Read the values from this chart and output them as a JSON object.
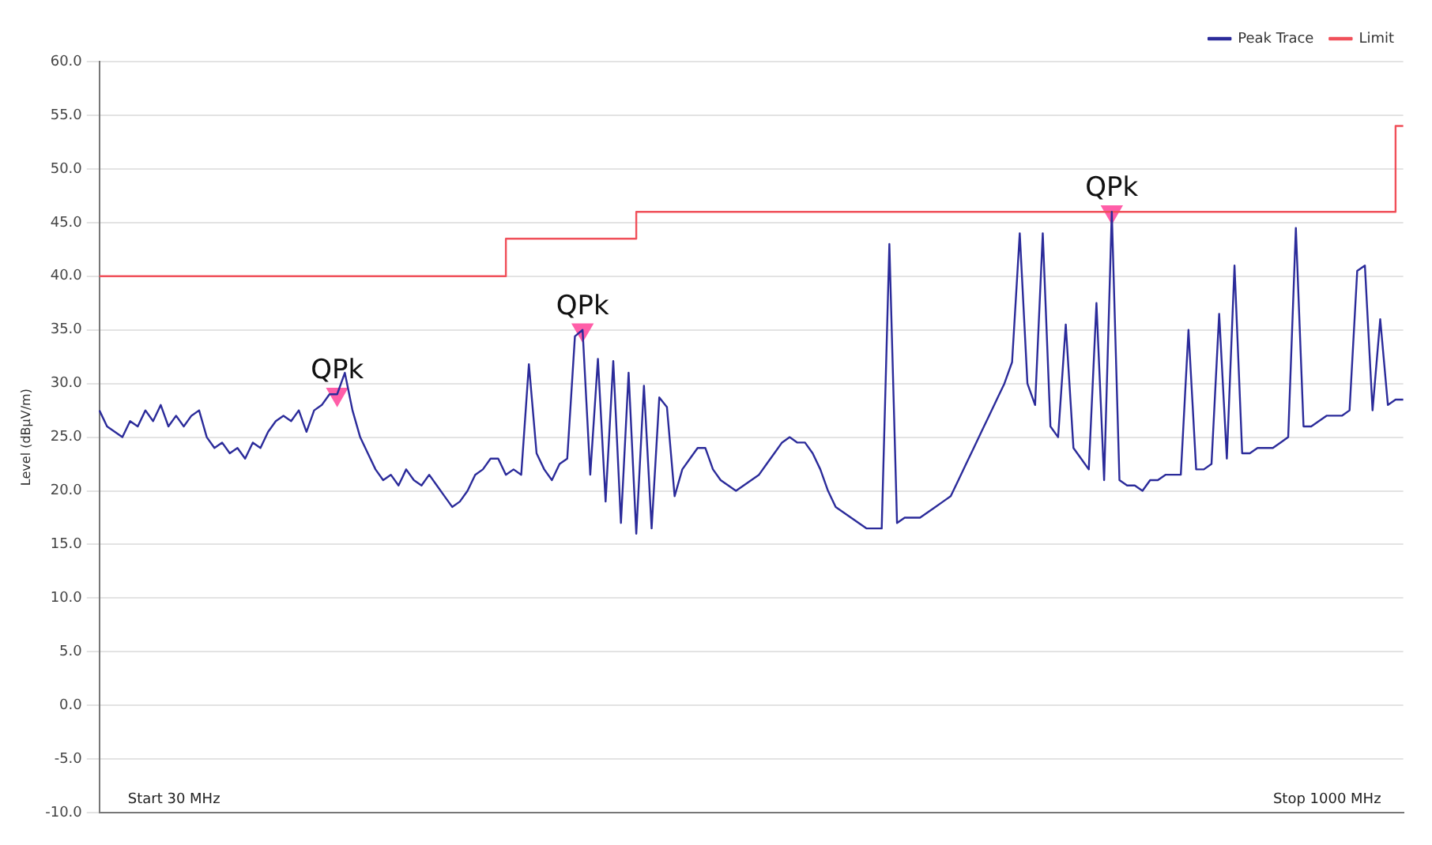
{
  "chart_data": {
    "type": "line",
    "ylabel": "Level (dBµV/m)",
    "ylim": [
      -10,
      60
    ],
    "categories": [
      null,
      null,
      null,
      null,
      null,
      null,
      null,
      null,
      null,
      null,
      null,
      null,
      null,
      null,
      null,
      null,
      null,
      null,
      null,
      null,
      null,
      null,
      null,
      null,
      null,
      null,
      null,
      null,
      null,
      null,
      null,
      null,
      null,
      null,
      null,
      null,
      null,
      null,
      null,
      null,
      null,
      null,
      null,
      null,
      null,
      null,
      null,
      null,
      null,
      null,
      null,
      null,
      null,
      null,
      null,
      null,
      null,
      null,
      null,
      null,
      null,
      null,
      null,
      null,
      null,
      null,
      null,
      null,
      null,
      null,
      null,
      null,
      null,
      null,
      null,
      null,
      null,
      null,
      null,
      null,
      null,
      null,
      null,
      null,
      null,
      null,
      null,
      null,
      null,
      null,
      null,
      null,
      null,
      null,
      null,
      null,
      null,
      null,
      null,
      null,
      null,
      null,
      null,
      null,
      null,
      null,
      null,
      null,
      null,
      null,
      null,
      null,
      null,
      null,
      null,
      null,
      null,
      null,
      null,
      null,
      null,
      null,
      null,
      null,
      null,
      null,
      null,
      null,
      null,
      null,
      null,
      null,
      null,
      null,
      null,
      null,
      null,
      null,
      null,
      null,
      null,
      null,
      null,
      null,
      null,
      null,
      null,
      null,
      null,
      null,
      null,
      null,
      null,
      null,
      null,
      null,
      null,
      null,
      null,
      null,
      null,
      null,
      null,
      null,
      null,
      null,
      null,
      null,
      null,
      null,
      null
    ],
    "yticks": [
      {
        "value": -10,
        "label": "-10.0"
      },
      {
        "value": -5,
        "label": "-5.0"
      },
      {
        "value": 0,
        "label": "0.0"
      },
      {
        "value": 5,
        "label": "5.0"
      },
      {
        "value": 10,
        "label": "10.0"
      },
      {
        "value": 15,
        "label": "15.0"
      },
      {
        "value": 20,
        "label": "20.0"
      },
      {
        "value": 25,
        "label": "25.0"
      },
      {
        "value": 30,
        "label": "30.0"
      },
      {
        "value": 35,
        "label": "35.0"
      },
      {
        "value": 40,
        "label": "40.0"
      },
      {
        "value": 45,
        "label": "45.0"
      },
      {
        "value": 50,
        "label": "50.0"
      },
      {
        "value": 55,
        "label": "55.0"
      },
      {
        "value": 60,
        "label": "60.0"
      }
    ],
    "tick_labels": "y",
    "grid": "y",
    "legend": "top right",
    "marker": "none",
    "series": [
      {
        "name": "Peak Trace",
        "color": "#2b2b9a",
        "type": "line",
        "values": [
          27.5,
          26,
          25.5,
          25,
          26.5,
          26,
          27.5,
          26.5,
          28,
          26,
          27,
          26,
          27,
          27.5,
          25,
          24,
          24.5,
          23.5,
          24,
          23,
          24.5,
          24,
          25.5,
          26.5,
          27,
          26.5,
          27.5,
          25.5,
          27.5,
          28,
          29,
          29,
          31,
          27.5,
          25,
          23.5,
          22,
          21,
          21.5,
          20.5,
          22,
          21,
          20.5,
          21.5,
          20.5,
          19.5,
          18.5,
          19,
          20,
          21.5,
          22,
          23,
          23,
          21.5,
          22,
          21.5,
          31.8,
          23.5,
          22,
          21,
          22.5,
          23,
          34.4,
          35,
          21.5,
          32.3,
          19,
          32.1,
          17,
          31,
          16,
          29.8,
          16.5,
          28.7,
          27.8,
          19.5,
          22,
          23,
          24,
          24,
          22,
          21,
          20.5,
          20,
          20.5,
          21,
          21.5,
          22.5,
          23.5,
          24.5,
          25,
          24.5,
          24.5,
          23.5,
          22,
          20,
          18.5,
          18,
          17.5,
          17,
          16.5,
          16.5,
          16.5,
          43,
          17,
          17.5,
          17.5,
          17.5,
          18,
          18.5,
          19,
          19.5,
          21,
          22.5,
          24,
          25.5,
          27,
          28.5,
          30,
          32,
          44,
          30,
          28,
          44,
          26,
          25,
          35.5,
          24,
          23,
          22,
          37.5,
          21,
          46,
          21,
          20.5,
          20.5,
          20,
          21,
          21,
          21.5,
          21.5,
          21.5,
          35,
          22,
          22,
          22.5,
          36.5,
          23,
          41,
          23.5,
          23.5,
          24,
          24,
          24,
          24.5,
          25,
          44.5,
          26,
          26,
          26.5,
          27,
          27,
          27,
          27.5,
          40.5,
          41,
          27.5,
          36,
          28,
          28.5,
          28.5
        ]
      },
      {
        "name": "Limit",
        "color": "#f0505a",
        "type": "step",
        "values": [
          40,
          40,
          40,
          40,
          40,
          40,
          40,
          40,
          40,
          40,
          40,
          40,
          40,
          40,
          40,
          40,
          40,
          40,
          40,
          40,
          40,
          40,
          40,
          40,
          40,
          40,
          40,
          40,
          40,
          40,
          40,
          40,
          40,
          40,
          40,
          40,
          40,
          40,
          40,
          40,
          40,
          40,
          40,
          40,
          40,
          40,
          40,
          40,
          40,
          40,
          40,
          40,
          40,
          43.5,
          43.5,
          43.5,
          43.5,
          43.5,
          43.5,
          43.5,
          43.5,
          43.5,
          43.5,
          43.5,
          43.5,
          43.5,
          43.5,
          43.5,
          43.5,
          43.5,
          46,
          46,
          46,
          46,
          46,
          46,
          46,
          46,
          46,
          46,
          46,
          46,
          46,
          46,
          46,
          46,
          46,
          46,
          46,
          46,
          46,
          46,
          46,
          46,
          46,
          46,
          46,
          46,
          46,
          46,
          46,
          46,
          46,
          46,
          46,
          46,
          46,
          46,
          46,
          46,
          46,
          46,
          46,
          46,
          46,
          46,
          46,
          46,
          46,
          46,
          46,
          46,
          46,
          46,
          46,
          46,
          46,
          46,
          46,
          46,
          46,
          46,
          46,
          46,
          46,
          46,
          46,
          46,
          46,
          46,
          46,
          46,
          46,
          46,
          46,
          46,
          46,
          46,
          46,
          46,
          46,
          46,
          46,
          46,
          46,
          46,
          46,
          46,
          46,
          46,
          46,
          46,
          46,
          46,
          46,
          46,
          46,
          46,
          46,
          54,
          54
        ]
      },
      {
        "color": "#ff5ea8",
        "type": "scatter",
        "marker": "triangle",
        "values": [
          null,
          null,
          null,
          null,
          null,
          null,
          null,
          null,
          null,
          null,
          null,
          null,
          null,
          null,
          null,
          null,
          null,
          null,
          null,
          null,
          null,
          null,
          null,
          null,
          null,
          null,
          null,
          null,
          null,
          null,
          null,
          29,
          null,
          null,
          null,
          null,
          null,
          null,
          null,
          null,
          null,
          null,
          null,
          null,
          null,
          null,
          null,
          null,
          null,
          null,
          null,
          null,
          null,
          null,
          null,
          null,
          null,
          null,
          null,
          null,
          null,
          null,
          null,
          35,
          null,
          null,
          null,
          null,
          null,
          null,
          null,
          null,
          null,
          null,
          null,
          null,
          null,
          null,
          null,
          null,
          null,
          null,
          null,
          null,
          null,
          null,
          null,
          null,
          null,
          null,
          null,
          null,
          null,
          null,
          null,
          null,
          null,
          null,
          null,
          null,
          null,
          null,
          null,
          null,
          null,
          null,
          null,
          null,
          null,
          null,
          null,
          null,
          null,
          null,
          null,
          null,
          null,
          null,
          null,
          null,
          null,
          null,
          null,
          null,
          null,
          null,
          null,
          null,
          null,
          null,
          null,
          null,
          46,
          null,
          null,
          null,
          null,
          null,
          null,
          null,
          null,
          null,
          null,
          null,
          null,
          null,
          null,
          null,
          null,
          null,
          null,
          null,
          null,
          null,
          null,
          null,
          null,
          null,
          null,
          null,
          null,
          null,
          null,
          null,
          null,
          null,
          null,
          null,
          null,
          null,
          null
        ],
        "value_labels": [
          null,
          null,
          null,
          null,
          null,
          null,
          null,
          null,
          null,
          null,
          null,
          null,
          null,
          null,
          null,
          null,
          null,
          null,
          null,
          null,
          null,
          null,
          null,
          null,
          null,
          null,
          null,
          null,
          null,
          null,
          null,
          "QPk",
          null,
          null,
          null,
          null,
          null,
          null,
          null,
          null,
          null,
          null,
          null,
          null,
          null,
          null,
          null,
          null,
          null,
          null,
          null,
          null,
          null,
          null,
          null,
          null,
          null,
          null,
          null,
          null,
          null,
          null,
          null,
          "QPk",
          null,
          null,
          null,
          null,
          null,
          null,
          null,
          null,
          null,
          null,
          null,
          null,
          null,
          null,
          null,
          null,
          null,
          null,
          null,
          null,
          null,
          null,
          null,
          null,
          null,
          null,
          null,
          null,
          null,
          null,
          null,
          null,
          null,
          null,
          null,
          null,
          null,
          null,
          null,
          null,
          null,
          null,
          null,
          null,
          null,
          null,
          null,
          null,
          null,
          null,
          null,
          null,
          null,
          null,
          null,
          null,
          null,
          null,
          null,
          null,
          null,
          null,
          null,
          null,
          null,
          null,
          null,
          null,
          "QPk",
          null,
          null,
          null,
          null,
          null,
          null,
          null,
          null,
          null,
          null,
          null,
          null,
          null,
          null,
          null,
          null,
          null,
          null,
          null,
          null,
          null,
          null,
          null,
          null,
          null,
          null,
          null,
          null,
          null,
          null,
          null,
          null,
          null,
          null,
          null,
          null,
          null,
          null
        ]
      }
    ],
    "annotations": [
      "Start 30 MHz",
      "Stop 1000 MHz"
    ]
  }
}
